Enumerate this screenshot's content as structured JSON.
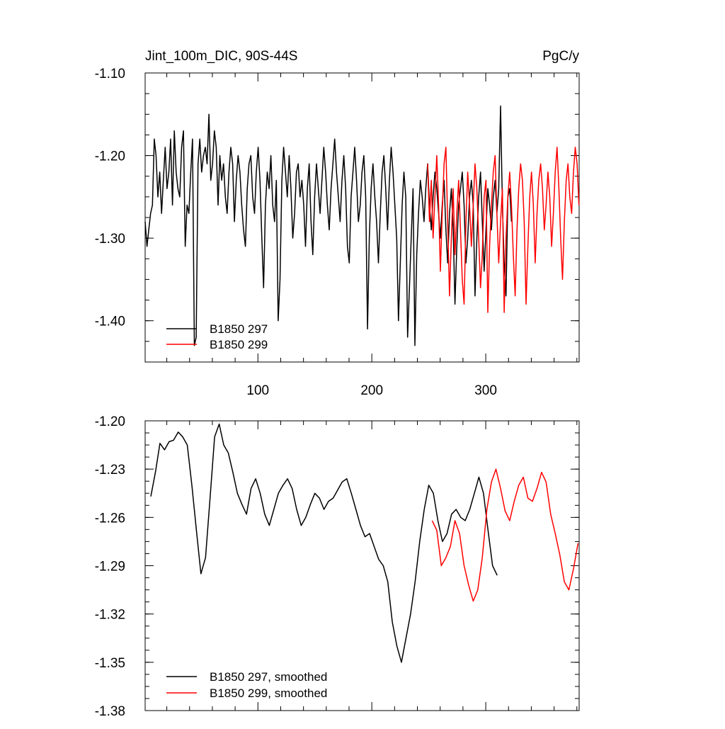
{
  "chart_data": [
    {
      "type": "line",
      "title": "Jint_100m_DIC, 90S-44S",
      "units": "PgC/y",
      "ylim": [
        -1.45,
        -1.1
      ],
      "xlim": [
        1,
        382
      ],
      "yticks": [
        "-1.10",
        "-1.20",
        "-1.30",
        "-1.40"
      ],
      "xticks": [
        "100",
        "200",
        "300"
      ],
      "legend_position": "bottom-left",
      "series": [
        {
          "name": "B1850 297",
          "color": "#000000",
          "x_start": 1,
          "values": [
            -1.28,
            -1.31,
            -1.29,
            -1.27,
            -1.26,
            -1.18,
            -1.2,
            -1.25,
            -1.22,
            -1.27,
            -1.23,
            -1.19,
            -1.24,
            -1.22,
            -1.18,
            -1.26,
            -1.17,
            -1.22,
            -1.24,
            -1.25,
            -1.19,
            -1.17,
            -1.31,
            -1.26,
            -1.27,
            -1.22,
            -1.18,
            -1.43,
            -1.42,
            -1.21,
            -1.18,
            -1.22,
            -1.2,
            -1.19,
            -1.21,
            -1.15,
            -1.23,
            -1.21,
            -1.17,
            -1.19,
            -1.26,
            -1.2,
            -1.23,
            -1.21,
            -1.25,
            -1.27,
            -1.22,
            -1.19,
            -1.21,
            -1.28,
            -1.23,
            -1.2,
            -1.22,
            -1.26,
            -1.29,
            -1.31,
            -1.24,
            -1.21,
            -1.2,
            -1.25,
            -1.27,
            -1.22,
            -1.19,
            -1.23,
            -1.3,
            -1.36,
            -1.26,
            -1.22,
            -1.24,
            -1.2,
            -1.26,
            -1.28,
            -1.23,
            -1.4,
            -1.35,
            -1.23,
            -1.19,
            -1.22,
            -1.25,
            -1.2,
            -1.24,
            -1.3,
            -1.27,
            -1.22,
            -1.21,
            -1.25,
            -1.23,
            -1.26,
            -1.31,
            -1.24,
            -1.21,
            -1.28,
            -1.32,
            -1.25,
            -1.21,
            -1.24,
            -1.27,
            -1.23,
            -1.19,
            -1.22,
            -1.26,
            -1.29,
            -1.24,
            -1.21,
            -1.18,
            -1.22,
            -1.25,
            -1.28,
            -1.23,
            -1.2,
            -1.24,
            -1.31,
            -1.33,
            -1.25,
            -1.22,
            -1.19,
            -1.23,
            -1.28,
            -1.26,
            -1.22,
            -1.2,
            -1.25,
            -1.41,
            -1.3,
            -1.24,
            -1.21,
            -1.25,
            -1.28,
            -1.33,
            -1.27,
            -1.22,
            -1.2,
            -1.24,
            -1.29,
            -1.23,
            -1.19,
            -1.22,
            -1.26,
            -1.3,
            -1.4,
            -1.33,
            -1.26,
            -1.22,
            -1.25,
            -1.42,
            -1.36,
            -1.3,
            -1.24,
            -1.43,
            -1.32,
            -1.27,
            -1.23,
            -1.25,
            -1.28,
            -1.24,
            -1.21,
            -1.26,
            -1.29,
            -1.25,
            -1.22,
            -1.24,
            -1.27,
            -1.3,
            -1.26,
            -1.23,
            -1.29,
            -1.33,
            -1.27,
            -1.24,
            -1.29,
            -1.38,
            -1.31,
            -1.26,
            -1.24,
            -1.22,
            -1.26,
            -1.33,
            -1.3,
            -1.25,
            -1.23,
            -1.26,
            -1.37,
            -1.3,
            -1.25,
            -1.22,
            -1.28,
            -1.34,
            -1.29,
            -1.24,
            -1.26,
            -1.29,
            -1.25,
            -1.23,
            -1.27,
            -1.24,
            -1.14,
            -1.26,
            -1.33,
            -1.37,
            -1.25,
            -1.24,
            -1.28
          ]
        },
        {
          "name": "B1850 299",
          "color": "#ff0000",
          "x_start": 249,
          "values": [
            -1.21,
            -1.28,
            -1.23,
            -1.3,
            -1.25,
            -1.2,
            -1.26,
            -1.34,
            -1.27,
            -1.21,
            -1.19,
            -1.28,
            -1.37,
            -1.3,
            -1.24,
            -1.32,
            -1.27,
            -1.23,
            -1.29,
            -1.35,
            -1.38,
            -1.28,
            -1.22,
            -1.26,
            -1.31,
            -1.26,
            -1.21,
            -1.24,
            -1.3,
            -1.36,
            -1.32,
            -1.25,
            -1.23,
            -1.39,
            -1.31,
            -1.26,
            -1.22,
            -1.2,
            -1.27,
            -1.33,
            -1.28,
            -1.24,
            -1.39,
            -1.3,
            -1.25,
            -1.22,
            -1.26,
            -1.32,
            -1.37,
            -1.29,
            -1.24,
            -1.21,
            -1.23,
            -1.28,
            -1.38,
            -1.31,
            -1.25,
            -1.22,
            -1.26,
            -1.33,
            -1.27,
            -1.23,
            -1.21,
            -1.24,
            -1.29,
            -1.26,
            -1.22,
            -1.25,
            -1.31,
            -1.27,
            -1.22,
            -1.19,
            -1.24,
            -1.3,
            -1.35,
            -1.28,
            -1.23,
            -1.21,
            -1.25,
            -1.27,
            -1.22,
            -1.19,
            -1.21,
            -1.26,
            -1.3,
            -1.32,
            -1.26,
            -1.22,
            -1.19,
            -1.23,
            -1.28,
            -1.31,
            -1.26,
            -1.22,
            -1.18,
            -1.21,
            -1.26,
            -1.29,
            -1.33,
            -1.27,
            -1.24,
            -1.22,
            -1.25,
            -1.28,
            -1.23,
            -1.21,
            -1.24,
            -1.31,
            -1.35,
            -1.28,
            -1.24,
            -1.22,
            -1.2,
            -1.25,
            -1.29,
            -1.35,
            -1.4,
            -1.33,
            -1.27,
            -1.22,
            -1.25,
            -1.28,
            -1.23,
            -1.2,
            -1.24,
            -1.29,
            -1.36,
            -1.3,
            -1.25,
            -1.22,
            -1.26,
            -1.3,
            -1.24,
            -1.21,
            -1.23
          ]
        }
      ]
    },
    {
      "type": "line",
      "title": "",
      "ylim": [
        -1.38,
        -1.2
      ],
      "xlim": [
        1,
        382
      ],
      "yticks": [
        "-1.20",
        "-1.23",
        "-1.26",
        "-1.29",
        "-1.32",
        "-1.35",
        "-1.38"
      ],
      "xticks": [],
      "legend_position": "bottom-left",
      "series": [
        {
          "name": "B1850 297, smoothed",
          "color": "#000000",
          "points": [
            [
              6,
              -1.247
            ],
            [
              10,
              -1.232
            ],
            [
              14,
              -1.214
            ],
            [
              18,
              -1.218
            ],
            [
              22,
              -1.213
            ],
            [
              26,
              -1.212
            ],
            [
              30,
              -1.207
            ],
            [
              34,
              -1.21
            ],
            [
              38,
              -1.215
            ],
            [
              42,
              -1.24
            ],
            [
              46,
              -1.268
            ],
            [
              50,
              -1.295
            ],
            [
              54,
              -1.285
            ],
            [
              58,
              -1.248
            ],
            [
              62,
              -1.21
            ],
            [
              66,
              -1.202
            ],
            [
              70,
              -1.215
            ],
            [
              74,
              -1.22
            ],
            [
              78,
              -1.232
            ],
            [
              82,
              -1.245
            ],
            [
              86,
              -1.252
            ],
            [
              90,
              -1.258
            ],
            [
              94,
              -1.242
            ],
            [
              98,
              -1.236
            ],
            [
              102,
              -1.245
            ],
            [
              106,
              -1.258
            ],
            [
              110,
              -1.265
            ],
            [
              114,
              -1.255
            ],
            [
              118,
              -1.245
            ],
            [
              122,
              -1.24
            ],
            [
              126,
              -1.236
            ],
            [
              130,
              -1.242
            ],
            [
              134,
              -1.255
            ],
            [
              138,
              -1.265
            ],
            [
              142,
              -1.26
            ],
            [
              146,
              -1.252
            ],
            [
              150,
              -1.245
            ],
            [
              154,
              -1.248
            ],
            [
              158,
              -1.255
            ],
            [
              162,
              -1.25
            ],
            [
              166,
              -1.248
            ],
            [
              170,
              -1.243
            ],
            [
              174,
              -1.238
            ],
            [
              178,
              -1.236
            ],
            [
              182,
              -1.245
            ],
            [
              186,
              -1.255
            ],
            [
              190,
              -1.265
            ],
            [
              194,
              -1.272
            ],
            [
              198,
              -1.27
            ],
            [
              202,
              -1.278
            ],
            [
              206,
              -1.286
            ],
            [
              210,
              -1.29
            ],
            [
              214,
              -1.3
            ],
            [
              218,
              -1.325
            ],
            [
              222,
              -1.34
            ],
            [
              226,
              -1.35
            ],
            [
              230,
              -1.335
            ],
            [
              234,
              -1.32
            ],
            [
              238,
              -1.3
            ],
            [
              242,
              -1.275
            ],
            [
              246,
              -1.255
            ],
            [
              250,
              -1.24
            ],
            [
              254,
              -1.245
            ],
            [
              258,
              -1.262
            ],
            [
              262,
              -1.275
            ],
            [
              266,
              -1.27
            ],
            [
              270,
              -1.258
            ],
            [
              274,
              -1.255
            ],
            [
              278,
              -1.26
            ],
            [
              282,
              -1.262
            ],
            [
              286,
              -1.255
            ],
            [
              290,
              -1.245
            ],
            [
              294,
              -1.235
            ],
            [
              298,
              -1.245
            ],
            [
              302,
              -1.268
            ],
            [
              306,
              -1.29
            ],
            [
              310,
              -1.296
            ]
          ]
        },
        {
          "name": "B1850 299, smoothed",
          "color": "#ff0000",
          "points": [
            [
              253,
              -1.262
            ],
            [
              257,
              -1.268
            ],
            [
              261,
              -1.29
            ],
            [
              265,
              -1.285
            ],
            [
              269,
              -1.278
            ],
            [
              273,
              -1.262
            ],
            [
              277,
              -1.27
            ],
            [
              281,
              -1.29
            ],
            [
              285,
              -1.302
            ],
            [
              289,
              -1.312
            ],
            [
              293,
              -1.305
            ],
            [
              297,
              -1.285
            ],
            [
              301,
              -1.255
            ],
            [
              305,
              -1.238
            ],
            [
              309,
              -1.23
            ],
            [
              313,
              -1.242
            ],
            [
              317,
              -1.256
            ],
            [
              321,
              -1.262
            ],
            [
              325,
              -1.25
            ],
            [
              329,
              -1.24
            ],
            [
              333,
              -1.235
            ],
            [
              337,
              -1.248
            ],
            [
              341,
              -1.25
            ],
            [
              345,
              -1.242
            ],
            [
              349,
              -1.232
            ],
            [
              353,
              -1.238
            ],
            [
              357,
              -1.258
            ],
            [
              361,
              -1.27
            ],
            [
              365,
              -1.283
            ],
            [
              369,
              -1.3
            ],
            [
              373,
              -1.305
            ],
            [
              377,
              -1.292
            ],
            [
              381,
              -1.276
            ],
            [
              385,
              -1.265
            ],
            [
              389,
              -1.258
            ],
            [
              393,
              -1.25
            ]
          ]
        }
      ]
    }
  ]
}
